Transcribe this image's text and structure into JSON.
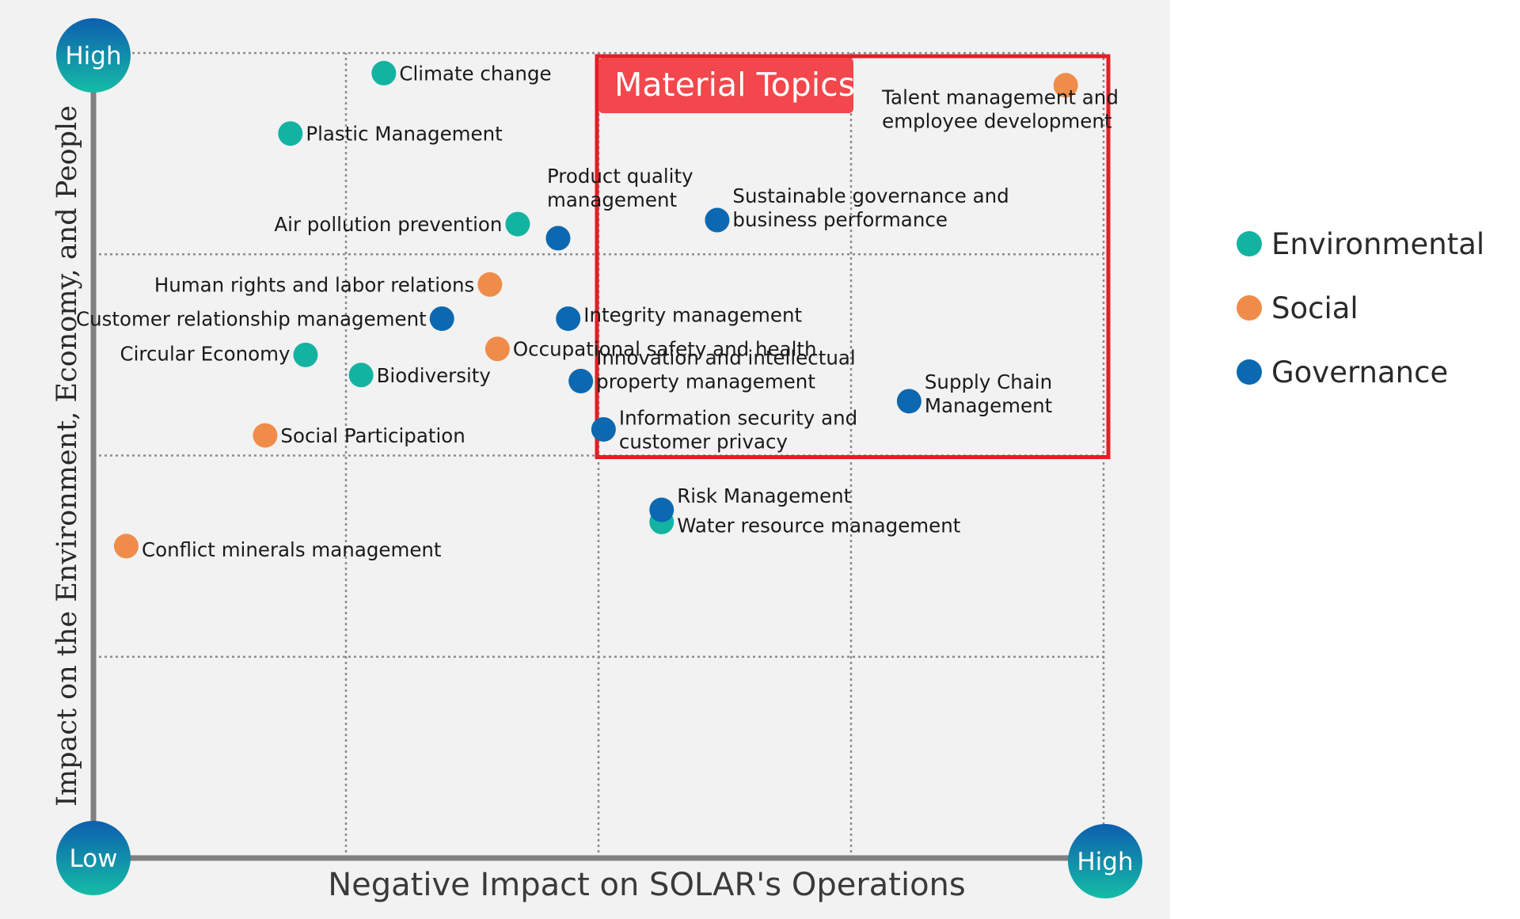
{
  "chart_data": {
    "type": "scatter",
    "xlabel": "Negative Impact on SOLAR's Operations",
    "ylabel": "Impact on the Environment, Economy, and People",
    "xlim": [
      0,
      4
    ],
    "ylim": [
      0,
      4
    ],
    "corner_labels": {
      "y_high": "High",
      "origin_low": "Low",
      "x_high": "High"
    },
    "highlight_box": {
      "label": "Material Topics",
      "x": [
        2,
        4
      ],
      "y": [
        2,
        4
      ]
    },
    "series": [
      {
        "name": "Environmental",
        "color": "#13b3a2"
      },
      {
        "name": "Social",
        "color": "#f08c4a"
      },
      {
        "name": "Governance",
        "color": "#0c68b0"
      }
    ],
    "points": [
      {
        "label": [
          "Climate change"
        ],
        "series": "Environmental",
        "x": 1.15,
        "y": 3.9
      },
      {
        "label": [
          "Plastic Management"
        ],
        "series": "Environmental",
        "x": 0.78,
        "y": 3.6
      },
      {
        "label": [
          "Air pollution prevention"
        ],
        "series": "Environmental",
        "x": 1.68,
        "y": 3.15
      },
      {
        "label": [
          "Product quality",
          "management"
        ],
        "series": "Governance",
        "x": 1.84,
        "y": 3.08
      },
      {
        "label": [
          "Sustainable governance and",
          "business performance"
        ],
        "series": "Governance",
        "x": 2.47,
        "y": 3.17
      },
      {
        "label": [
          "Talent management and",
          "employee development"
        ],
        "series": "Social",
        "x": 3.85,
        "y": 3.84
      },
      {
        "label": [
          "Human rights and labor relations"
        ],
        "series": "Social",
        "x": 1.57,
        "y": 2.85
      },
      {
        "label": [
          "Customer relationship management"
        ],
        "series": "Governance",
        "x": 1.38,
        "y": 2.68
      },
      {
        "label": [
          "Integrity management"
        ],
        "series": "Governance",
        "x": 1.88,
        "y": 2.68
      },
      {
        "label": [
          "Circular Economy"
        ],
        "series": "Environmental",
        "x": 0.84,
        "y": 2.5
      },
      {
        "label": [
          "Occupational safety and health"
        ],
        "series": "Social",
        "x": 1.6,
        "y": 2.53
      },
      {
        "label": [
          "Biodiversity"
        ],
        "series": "Environmental",
        "x": 1.06,
        "y": 2.4
      },
      {
        "label": [
          "Innovation and intellectual",
          "property management"
        ],
        "series": "Governance",
        "x": 1.93,
        "y": 2.37
      },
      {
        "label": [
          "Supply Chain",
          "Management"
        ],
        "series": "Governance",
        "x": 3.23,
        "y": 2.27
      },
      {
        "label": [
          "Social Participation"
        ],
        "series": "Social",
        "x": 0.68,
        "y": 2.1
      },
      {
        "label": [
          "Information security and",
          "customer privacy"
        ],
        "series": "Governance",
        "x": 2.02,
        "y": 2.13
      },
      {
        "label": [
          "Water resource management"
        ],
        "series": "Environmental",
        "x": 2.25,
        "y": 1.67
      },
      {
        "label": [
          "Risk Management"
        ],
        "series": "Governance",
        "x": 2.25,
        "y": 1.73
      },
      {
        "label": [
          "Conflict minerals management"
        ],
        "series": "Social",
        "x": 0.13,
        "y": 1.55
      }
    ]
  }
}
